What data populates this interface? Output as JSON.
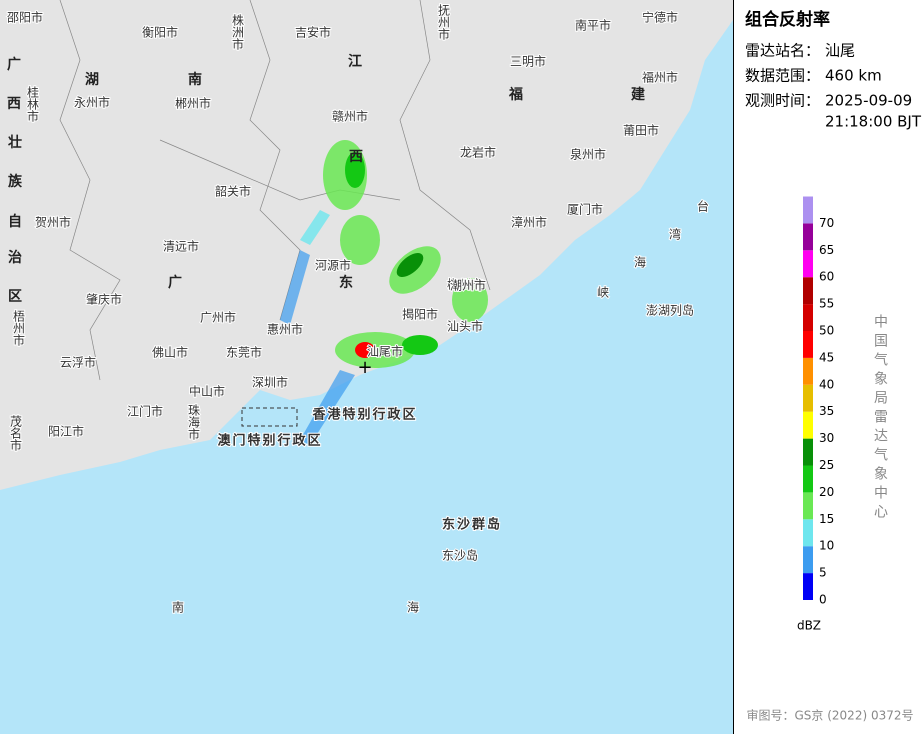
{
  "panel": {
    "title": "组合反射率",
    "station_label": "雷达站名：",
    "station": "汕尾",
    "range_label": "数据范围：",
    "range": "460 km",
    "time_label": "观测时间：",
    "date": "2025-09-09",
    "time": "21:18:00 BJT",
    "legend": [
      {
        "value": 0,
        "color": "#0000f6"
      },
      {
        "value": 5,
        "color": "#3c9cf0"
      },
      {
        "value": 10,
        "color": "#6ee6ee"
      },
      {
        "value": 15,
        "color": "#6ae854"
      },
      {
        "value": 20,
        "color": "#14c814"
      },
      {
        "value": 25,
        "color": "#089008"
      },
      {
        "value": 30,
        "color": "#ffff00"
      },
      {
        "value": 35,
        "color": "#e6be00"
      },
      {
        "value": 40,
        "color": "#ff9000"
      },
      {
        "value": 45,
        "color": "#ff0000"
      },
      {
        "value": 50,
        "color": "#d40000"
      },
      {
        "value": 55,
        "color": "#b00000"
      },
      {
        "value": 60,
        "color": "#ff00f0"
      },
      {
        "value": 65,
        "color": "#96009a"
      },
      {
        "value": 70,
        "color": "#ac90f0"
      }
    ],
    "unit": "dBZ",
    "agency": "中国气象局雷达气象中心",
    "approval": "审图号：GS京 (2022) 0372号"
  },
  "map": {
    "labels": [
      "邵阳市",
      "衡阳市",
      "株洲市",
      "吉安市",
      "抚州市",
      "南平市",
      "宁德市",
      "广",
      "湖",
      "南",
      "江",
      "三明市",
      "福州市",
      "西",
      "桂林市",
      "永州市",
      "郴州市",
      "福",
      "建",
      "壮",
      "赣州市",
      "龙岩市",
      "泉州市",
      "莆田市",
      "族",
      "西",
      "韶关市",
      "厦门市",
      "漳州市",
      "台",
      "自",
      "贺州市",
      "清远市",
      "湾",
      "治",
      "河源市",
      "广",
      "东",
      "梅州市",
      "海",
      "峡",
      "区",
      "肇庆市",
      "广州市",
      "惠州市",
      "潮州市",
      "揭阳市",
      "汕头市",
      "澎湖列岛",
      "梧州市",
      "佛山市",
      "东莞市",
      "汕尾市",
      "云浮市",
      "中山市",
      "深圳市",
      "江门市",
      "珠海市",
      "香港特别行政区",
      "茂名市",
      "阳江市",
      "澳门特别行政区",
      "东沙群岛",
      "东沙岛",
      "南",
      "海"
    ]
  }
}
